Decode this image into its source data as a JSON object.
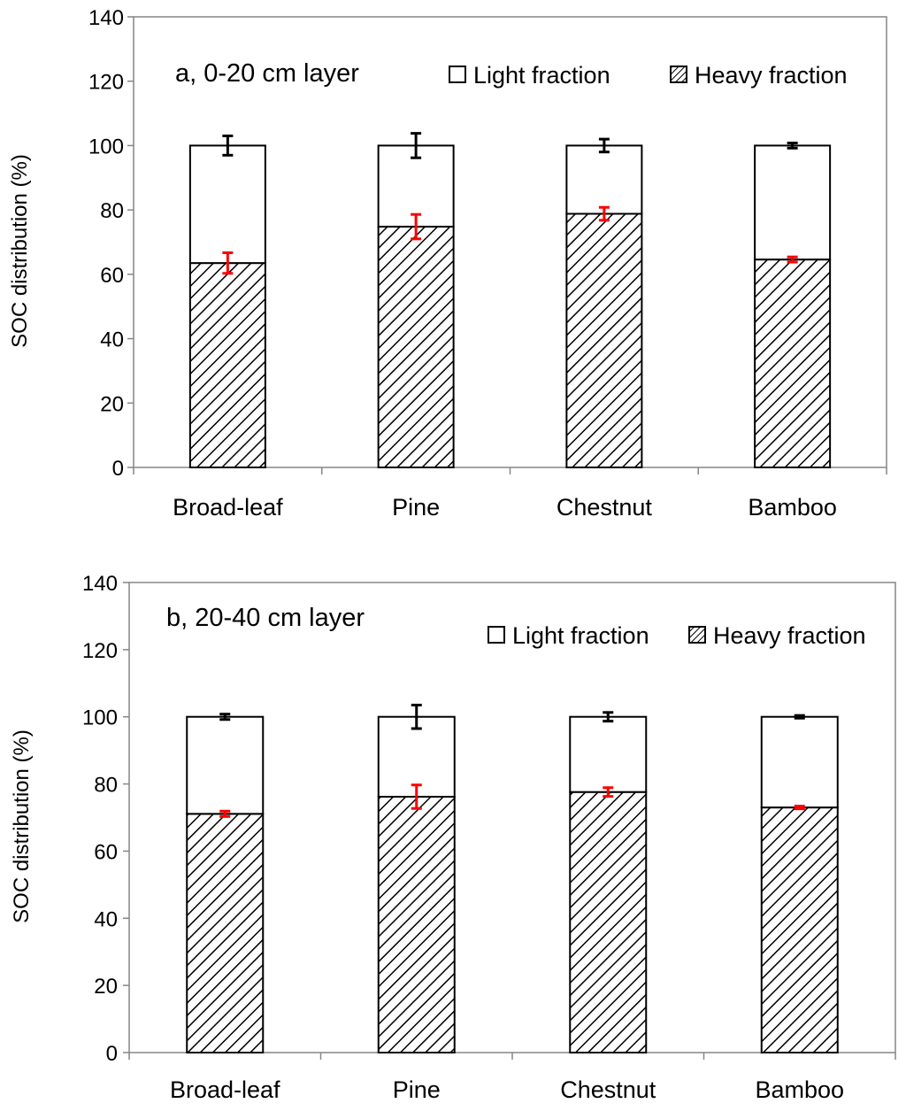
{
  "chart_data": [
    {
      "type": "bar",
      "stacked": true,
      "title": "a, 0-20 cm layer",
      "ylabel": "SOC distribution (%)",
      "xlabel": "",
      "ylim": [
        0,
        140
      ],
      "yticks": [
        0,
        20,
        40,
        60,
        80,
        100,
        120,
        140
      ],
      "ytick_labels": [
        "0",
        "20",
        "40",
        "60",
        "80",
        "100",
        "120",
        "140"
      ],
      "categories": [
        "Broad-leaf",
        "Pine",
        "Chestnut",
        "Bamboo"
      ],
      "legend_position": "top-right",
      "grid": false,
      "series": [
        {
          "name": "Heavy fraction",
          "pattern": "diagonal-hatch",
          "values": [
            63.5,
            74.8,
            78.8,
            64.6
          ],
          "errors": [
            3.2,
            3.8,
            2.0,
            0.8
          ],
          "error_color": "#ff0000"
        },
        {
          "name": "Light fraction",
          "pattern": "solid-white",
          "values": [
            36.5,
            25.2,
            21.2,
            35.4
          ],
          "errors": [
            3.0,
            3.8,
            2.0,
            0.8
          ],
          "error_color": "#000000"
        }
      ]
    },
    {
      "type": "bar",
      "stacked": true,
      "title": "b, 20-40 cm layer",
      "ylabel": "SOC distribution (%)",
      "xlabel": "",
      "ylim": [
        0,
        140
      ],
      "yticks": [
        0,
        20,
        40,
        60,
        80,
        100,
        120,
        140
      ],
      "ytick_labels": [
        "0",
        "20",
        "40",
        "60",
        "80",
        "100",
        "120",
        "140"
      ],
      "categories": [
        "Broad-leaf",
        "Pine",
        "Chestnut",
        "Bamboo"
      ],
      "legend_position": "top-right",
      "grid": false,
      "series": [
        {
          "name": "Heavy fraction",
          "pattern": "diagonal-hatch",
          "values": [
            71.1,
            76.2,
            77.6,
            73.0
          ],
          "errors": [
            0.8,
            3.5,
            1.3,
            0.4
          ],
          "error_color": "#ff0000"
        },
        {
          "name": "Light fraction",
          "pattern": "solid-white",
          "values": [
            28.9,
            23.8,
            22.4,
            27.0
          ],
          "errors": [
            0.8,
            3.5,
            1.3,
            0.4
          ],
          "error_color": "#000000"
        }
      ]
    }
  ]
}
